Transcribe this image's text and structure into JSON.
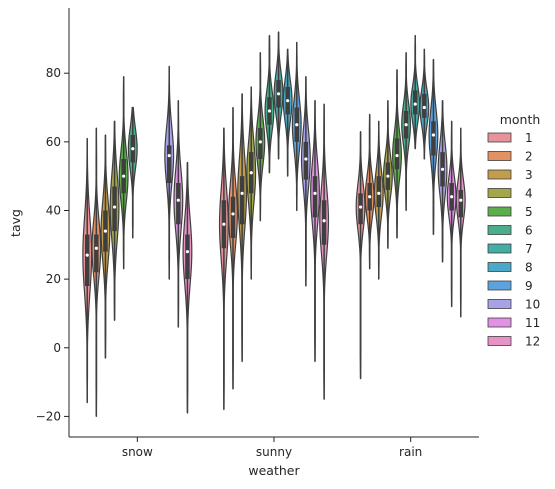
{
  "chart_data": {
    "type": "violin",
    "xlabel": "weather",
    "ylabel": "tavg",
    "categories": [
      "snow",
      "sunny",
      "rain"
    ],
    "ylim": [
      -26,
      99
    ],
    "yticks": [
      -20,
      0,
      20,
      40,
      60,
      80
    ],
    "ytick_labels": [
      "−20",
      "0",
      "20",
      "40",
      "60",
      "80"
    ],
    "grid": false,
    "legend": {
      "title": "month",
      "position": "right",
      "labels": [
        "1",
        "2",
        "3",
        "4",
        "5",
        "6",
        "7",
        "8",
        "9",
        "10",
        "11",
        "12"
      ]
    },
    "colors": [
      "#e8939a",
      "#e39162",
      "#c29d4b",
      "#a3a64a",
      "#5cad4b",
      "#4aad8b",
      "#43ada6",
      "#4aa9c8",
      "#5ca3de",
      "#a8a3e8",
      "#e093e3",
      "#e893c8"
    ],
    "series": [
      {
        "name": "1",
        "groups": [
          {
            "category": "snow",
            "min": -16,
            "q1": 18,
            "median": 27,
            "q3": 33,
            "max": 61
          },
          {
            "category": "sunny",
            "min": -18,
            "q1": 29,
            "median": 36,
            "q3": 43,
            "max": 64
          },
          {
            "category": "rain",
            "min": -9,
            "q1": 36,
            "median": 41,
            "q3": 45,
            "max": 63
          }
        ]
      },
      {
        "name": "2",
        "groups": [
          {
            "category": "snow",
            "min": -20,
            "q1": 22,
            "median": 29,
            "q3": 33,
            "max": 64
          },
          {
            "category": "sunny",
            "min": -12,
            "q1": 32,
            "median": 39,
            "q3": 44,
            "max": 70
          },
          {
            "category": "rain",
            "min": 23,
            "q1": 40,
            "median": 44,
            "q3": 48,
            "max": 68
          }
        ]
      },
      {
        "name": "3",
        "groups": [
          {
            "category": "snow",
            "min": -3,
            "q1": 28,
            "median": 34,
            "q3": 40,
            "max": 62
          },
          {
            "category": "sunny",
            "min": -4,
            "q1": 36,
            "median": 45,
            "q3": 50,
            "max": 74
          },
          {
            "category": "rain",
            "min": 20,
            "q1": 41,
            "median": 45,
            "q3": 50,
            "max": 66
          }
        ]
      },
      {
        "name": "4",
        "groups": [
          {
            "category": "snow",
            "min": 8,
            "q1": 34,
            "median": 41,
            "q3": 47,
            "max": 66
          },
          {
            "category": "sunny",
            "min": 20,
            "q1": 45,
            "median": 51,
            "q3": 57,
            "max": 76
          },
          {
            "category": "rain",
            "min": 29,
            "q1": 46,
            "median": 50,
            "q3": 54,
            "max": 72
          }
        ]
      },
      {
        "name": "5",
        "groups": [
          {
            "category": "snow",
            "min": 23,
            "q1": 45,
            "median": 50,
            "q3": 55,
            "max": 79
          },
          {
            "category": "sunny",
            "min": 37,
            "q1": 55,
            "median": 60,
            "q3": 64,
            "max": 86
          },
          {
            "category": "rain",
            "min": 32,
            "q1": 52,
            "median": 56,
            "q3": 61,
            "max": 81
          }
        ]
      },
      {
        "name": "6",
        "groups": [
          {
            "category": "snow",
            "min": 32,
            "q1": 54,
            "median": 58,
            "q3": 62,
            "max": 70
          },
          {
            "category": "sunny",
            "min": 51,
            "q1": 65,
            "median": 69,
            "q3": 73,
            "max": 91
          },
          {
            "category": "rain",
            "min": 40,
            "q1": 61,
            "median": 65,
            "q3": 69,
            "max": 86
          }
        ]
      },
      {
        "name": "7",
        "groups": [
          {
            "category": "sunny",
            "min": 55,
            "q1": 70,
            "median": 74,
            "q3": 78,
            "max": 92
          },
          {
            "category": "rain",
            "min": 58,
            "q1": 68,
            "median": 71,
            "q3": 75,
            "max": 91
          }
        ]
      },
      {
        "name": "8",
        "groups": [
          {
            "category": "sunny",
            "min": 50,
            "q1": 68,
            "median": 72,
            "q3": 76,
            "max": 87
          },
          {
            "category": "rain",
            "min": 55,
            "q1": 67,
            "median": 70,
            "q3": 74,
            "max": 87
          }
        ]
      },
      {
        "name": "9",
        "groups": [
          {
            "category": "sunny",
            "min": 40,
            "q1": 60,
            "median": 65,
            "q3": 70,
            "max": 89
          },
          {
            "category": "rain",
            "min": 33,
            "q1": 56,
            "median": 62,
            "q3": 66,
            "max": 84
          }
        ]
      },
      {
        "name": "10",
        "groups": [
          {
            "category": "snow",
            "min": 20,
            "q1": 48,
            "median": 56,
            "q3": 59,
            "max": 82
          },
          {
            "category": "sunny",
            "min": 18,
            "q1": 49,
            "median": 55,
            "q3": 60,
            "max": 79
          },
          {
            "category": "rain",
            "min": 25,
            "q1": 47,
            "median": 52,
            "q3": 57,
            "max": 72
          }
        ]
      },
      {
        "name": "11",
        "groups": [
          {
            "category": "snow",
            "min": 6,
            "q1": 36,
            "median": 43,
            "q3": 48,
            "max": 72
          },
          {
            "category": "sunny",
            "min": -4,
            "q1": 38,
            "median": 45,
            "q3": 50,
            "max": 72
          },
          {
            "category": "rain",
            "min": 12,
            "q1": 40,
            "median": 44,
            "q3": 48,
            "max": 66
          }
        ]
      },
      {
        "name": "12",
        "groups": [
          {
            "category": "snow",
            "min": -19,
            "q1": 20,
            "median": 28,
            "q3": 33,
            "max": 54
          },
          {
            "category": "sunny",
            "min": -15,
            "q1": 30,
            "median": 37,
            "q3": 43,
            "max": 71
          },
          {
            "category": "rain",
            "min": 9,
            "q1": 38,
            "median": 43,
            "q3": 46,
            "max": 64
          }
        ]
      }
    ]
  }
}
